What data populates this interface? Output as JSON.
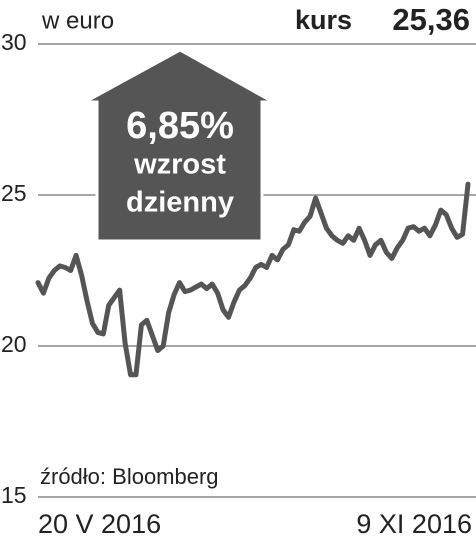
{
  "chart_data": {
    "type": "line",
    "y_label": "w euro",
    "current_label": "kurs",
    "annotation": {
      "change": "6,85%",
      "line1": "wzrost",
      "line2": "dzienny"
    },
    "source": "źródło: Bloomberg",
    "color": "#555555",
    "grid": true,
    "ylim": [
      15,
      30
    ],
    "yticks": [
      15,
      20,
      25,
      30
    ],
    "categories": [
      "20 V 2016",
      null,
      null,
      null,
      null,
      null,
      null,
      null,
      null,
      null,
      null,
      null,
      null,
      null,
      null,
      null,
      null,
      null,
      null,
      null,
      null,
      null,
      null,
      null,
      null,
      null,
      null,
      null,
      null,
      null,
      null,
      null,
      null,
      null,
      null,
      null,
      null,
      null,
      null,
      null,
      null,
      null,
      null,
      null,
      null,
      null,
      null,
      null,
      null,
      null,
      null,
      null,
      null,
      null,
      null,
      null,
      null,
      null,
      null,
      null,
      null,
      null,
      null,
      null,
      null,
      null,
      null,
      null,
      null,
      null,
      null,
      null,
      null,
      null,
      null,
      null,
      null,
      null,
      null,
      "9 XI 2016"
    ],
    "values": [
      22.1,
      21.75,
      22.25,
      22.5,
      22.65,
      22.6,
      22.5,
      23.0,
      22.35,
      21.5,
      20.75,
      20.45,
      20.4,
      21.35,
      21.6,
      21.85,
      20.1,
      19.05,
      19.05,
      20.7,
      20.85,
      20.35,
      19.85,
      20.0,
      21.1,
      21.7,
      22.1,
      21.8,
      21.85,
      21.95,
      22.05,
      21.9,
      22.05,
      21.75,
      21.2,
      20.95,
      21.45,
      21.85,
      22.0,
      22.25,
      22.6,
      22.7,
      22.6,
      23.0,
      22.85,
      23.2,
      23.35,
      23.85,
      23.8,
      24.1,
      24.3,
      24.9,
      24.4,
      23.9,
      23.65,
      23.5,
      23.4,
      23.65,
      23.5,
      23.9,
      23.5,
      23.0,
      23.35,
      23.5,
      23.1,
      22.9,
      23.25,
      23.5,
      23.9,
      23.95,
      23.8,
      23.9,
      23.65,
      24.0,
      24.5,
      24.35,
      23.9,
      23.6,
      23.7,
      25.36
    ],
    "value_labels": [
      null,
      null,
      null,
      null,
      null,
      null,
      null,
      null,
      null,
      null,
      null,
      null,
      null,
      null,
      null,
      null,
      null,
      null,
      null,
      null,
      null,
      null,
      null,
      null,
      null,
      null,
      null,
      null,
      null,
      null,
      null,
      null,
      null,
      null,
      null,
      null,
      null,
      null,
      null,
      null,
      null,
      null,
      null,
      null,
      null,
      null,
      null,
      null,
      null,
      null,
      null,
      null,
      null,
      null,
      null,
      null,
      null,
      null,
      null,
      null,
      null,
      null,
      null,
      null,
      null,
      null,
      null,
      null,
      null,
      null,
      null,
      null,
      null,
      null,
      null,
      null,
      null,
      null,
      null,
      "25,36"
    ]
  }
}
